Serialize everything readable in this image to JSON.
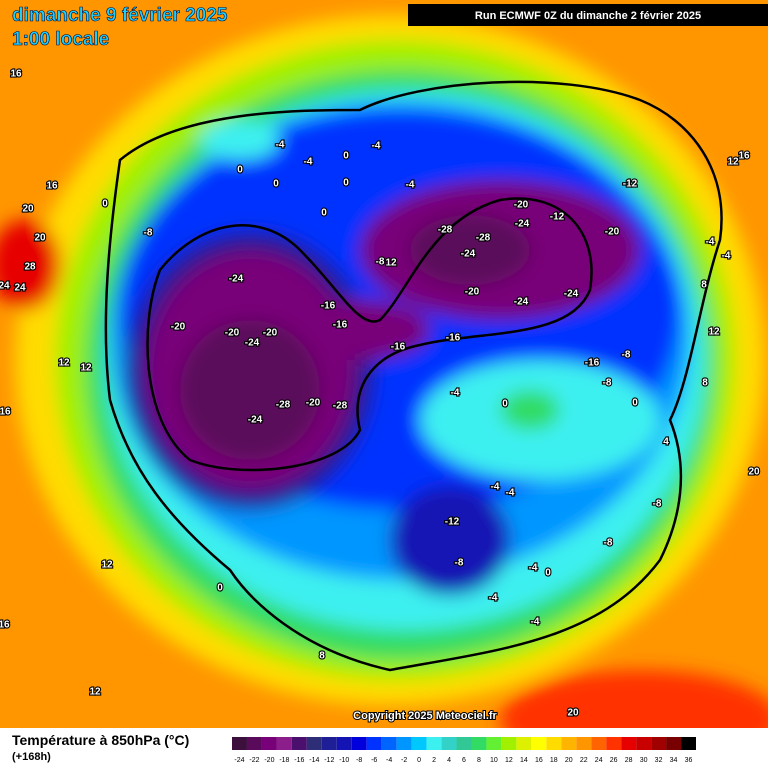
{
  "header": {
    "title": "dimanche 9 février 2025",
    "time": "1:00 locale",
    "run": "Run ECMWF 0Z du dimanche 2 février 2025"
  },
  "copyright": "Copyright 2025 Meteociel.fr",
  "footer": {
    "variable": "Température à 850hPa (°C)",
    "lead": "(+168h)"
  },
  "legend": {
    "values": [
      -24,
      -22,
      -20,
      -18,
      -16,
      -14,
      -12,
      -10,
      -8,
      -6,
      -4,
      -2,
      0,
      2,
      4,
      6,
      8,
      10,
      12,
      14,
      16,
      18,
      20,
      22,
      24,
      26,
      28,
      30,
      32,
      34,
      36
    ],
    "colors": [
      "#3c0f3c",
      "#5a0a5a",
      "#780078",
      "#8c1e8c",
      "#4b0f6e",
      "#2d2d78",
      "#1e1e96",
      "#1414b4",
      "#0000dc",
      "#0032ff",
      "#0064ff",
      "#0096ff",
      "#00c8ff",
      "#3cf0f0",
      "#32d2c8",
      "#32c896",
      "#32dc64",
      "#64f032",
      "#a0f000",
      "#dcf000",
      "#ffff00",
      "#ffdc00",
      "#ffb400",
      "#ff9600",
      "#ff6400",
      "#ff3200",
      "#e60000",
      "#c80000",
      "#a00000",
      "#780000",
      "#000000"
    ]
  },
  "map_labels": [
    "16",
    "16",
    "20",
    "20",
    "28",
    "24",
    "24",
    "12",
    "12",
    "16",
    "-4",
    "-4",
    "0",
    "0",
    "0",
    "0",
    "0",
    "-4",
    "-4",
    "0",
    "-8",
    "-24",
    "-20",
    "-20",
    "-24",
    "-20",
    "-16",
    "-16",
    "-8",
    "12",
    "-28",
    "-28",
    "-24",
    "-20",
    "-24",
    "-12",
    "-12",
    "-20",
    "-20",
    "-24",
    "-24",
    "-16",
    "-16",
    "-16",
    "-8",
    "-8",
    "0",
    "-28",
    "-20",
    "-28",
    "-24",
    "-4",
    "0",
    "-4",
    "-4",
    "-12",
    "-8",
    "-8",
    "-8",
    "-4",
    "0",
    "-4",
    "-4",
    "0",
    "12",
    "8",
    "12",
    "16",
    "20",
    "20",
    "12",
    "8",
    "8",
    "-4",
    "-4",
    "12",
    "16",
    "4"
  ]
}
